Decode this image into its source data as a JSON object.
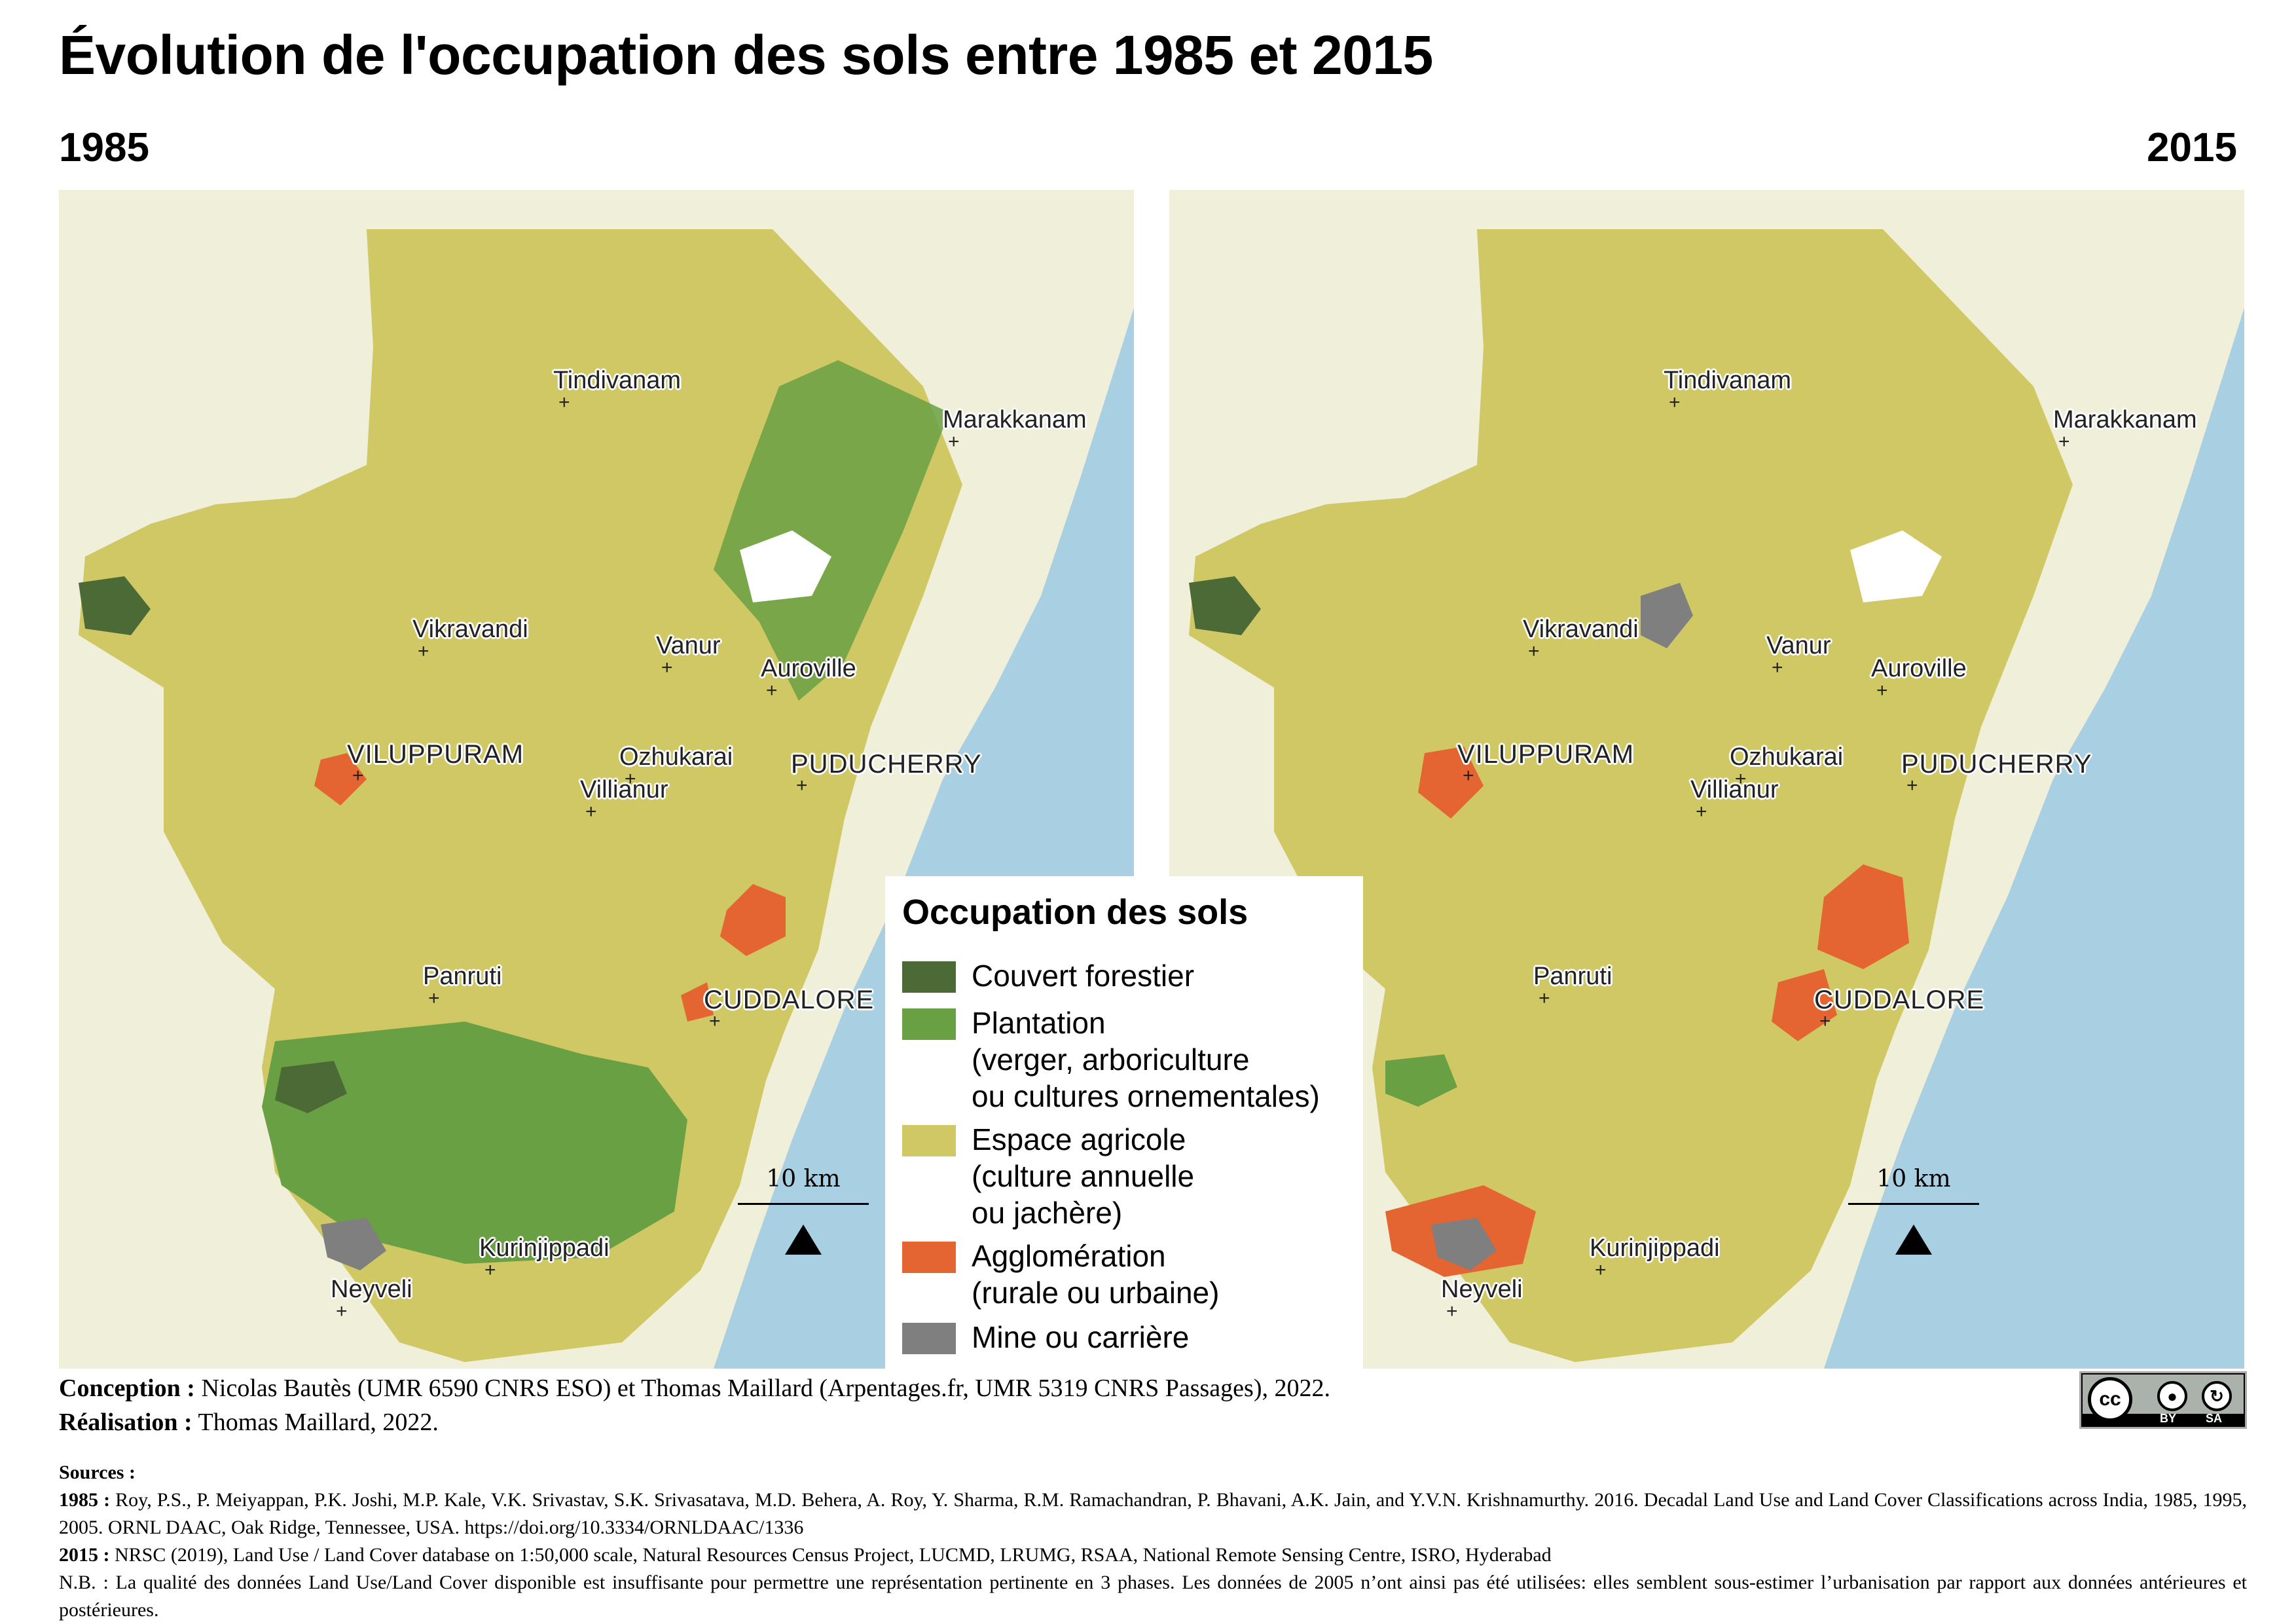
{
  "title": "Évolution de l'occupation des sols entre 1985 et 2015",
  "maps": {
    "left_year": "1985",
    "right_year": "2015"
  },
  "places": {
    "tindivanam": "Tindivanam",
    "marakkanam": "Marakkanam",
    "vikravandi": "Vikravandi",
    "vanur": "Vanur",
    "auroville": "Auroville",
    "viluppuram": "VILUPPURAM",
    "ozhukarai": "Ozhukarai",
    "puducherry": "PUDUCHERRY",
    "villianur": "Villianur",
    "panruti": "Panruti",
    "cuddalore": "CUDDALORE",
    "kurinjippadi": "Kurinjippadi",
    "neyveli": "Neyveli"
  },
  "scale_label": "10 km",
  "legend": {
    "title": "Occupation des sols",
    "items": [
      {
        "lines": [
          "Couvert forestier"
        ],
        "color": "#4b6a35"
      },
      {
        "lines": [
          "Plantation",
          "(verger, arboriculture",
          "ou cultures ornementales)"
        ],
        "color": "#6aa044"
      },
      {
        "lines": [
          "Espace agricole",
          "(culture annuelle",
          "ou jachère)"
        ],
        "color": "#cfc865"
      },
      {
        "lines": [
          "Agglomération",
          "(rurale ou urbaine)"
        ],
        "color": "#e46432"
      },
      {
        "lines": [
          "Mine ou carrière"
        ],
        "color": "#7f7f7f"
      }
    ]
  },
  "colors": {
    "sea": "#a8cfe2",
    "background_land": "#f0efd9",
    "forest": "#4b6a35",
    "plantation": "#6aa044",
    "agriculture": "#cfc865",
    "urban": "#e46432",
    "mine": "#7f7f7f"
  },
  "credits": {
    "conception_label": "Conception :",
    "conception_text": "Nicolas Bautès (UMR 6590 CNRS ESO) et Thomas Maillard (Arpentages.fr, UMR 5319 CNRS Passages), 2022.",
    "realisation_label": "Réalisation :",
    "realisation_text": "Thomas Maillard, 2022."
  },
  "license": {
    "cc": "cc",
    "by": "BY",
    "sa": "SA"
  },
  "sources": {
    "label": "Sources :",
    "s1985_label": "1985 :",
    "s1985_text": "Roy, P.S., P. Meiyappan, P.K. Joshi, M.P. Kale, V.K. Srivastav, S.K. Srivasatava, M.D. Behera, A. Roy, Y. Sharma, R.M. Ramachandran, P. Bhavani, A.K. Jain, and Y.V.N. Krishnamurthy. 2016. Decadal Land Use and Land Cover Classifications across India, 1985, 1995, 2005. ORNL DAAC, Oak Ridge, Tennessee, USA. https://doi.org/10.3334/ORNLDAAC/1336",
    "s2015_label": "2015 :",
    "s2015_text": "NRSC (2019), Land Use / Land Cover database on 1:50,000 scale, Natural Resources Census Project, LUCMD, LRUMG, RSAA, National Remote Sensing Centre, ISRO, Hyderabad",
    "nb": "N.B. : La qualité des données Land Use/Land Cover disponible est insuffisante pour permettre une représentation pertinente en 3 phases. Les données de 2005 n’ont ainsi pas été utilisées: elles semblent sous-estimer l’urbanisation par rapport aux données antérieures et postérieures."
  }
}
